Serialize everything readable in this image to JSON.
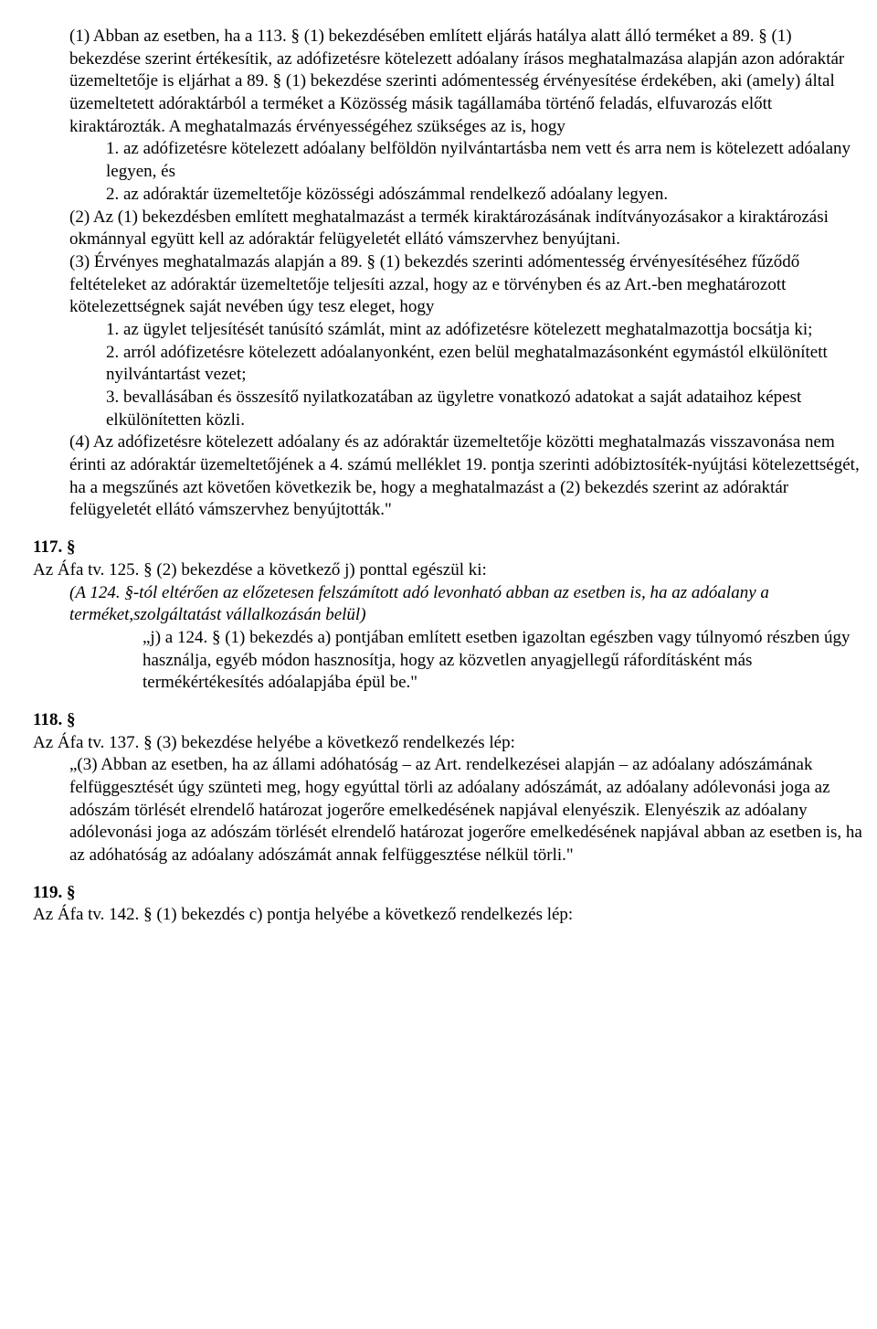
{
  "sec116": {
    "p1": "(1) Abban az esetben, ha a 113. § (1) bekezdésében említett eljárás hatálya alatt álló terméket a 89. § (1) bekezdése szerint értékesítik, az adófizetésre kötelezett adóalany írásos meghatalmazása alapján azon adóraktár üzemeltetője is eljárhat a 89. § (1) bekezdése szerinti adómentesség érvényesítése érdekében, aki (amely) által üzemeltetett adóraktárból a terméket a Közösség másik tagállamába történő feladás, elfuvarozás előtt kiraktározták. A meghatalmazás érvényességéhez szükséges az is, hogy",
    "p1_1": "1. az adófizetésre kötelezett adóalany belföldön nyilvántartásba nem vett és arra nem is kötelezett adóalany legyen, és",
    "p1_2": "2. az adóraktár üzemeltetője közösségi adószámmal rendelkező adóalany legyen.",
    "p2": "(2) Az (1) bekezdésben említett meghatalmazást a termék kiraktározásának indítványozásakor a kiraktározási okmánnyal együtt kell az adóraktár felügyeletét ellátó vámszervhez benyújtani.",
    "p3": "(3) Érvényes meghatalmazás alapján a 89. § (1) bekezdés szerinti adómentesség érvényesítéséhez fűződő feltételeket az adóraktár üzemeltetője teljesíti azzal, hogy az e törvényben és az Art.-ben meghatározott kötelezettségnek saját nevében úgy tesz eleget, hogy",
    "p3_1": "1. az ügylet teljesítését tanúsító számlát, mint az adófizetésre kötelezett meghatalmazottja bocsátja ki;",
    "p3_2": "2. arról adófizetésre kötelezett adóalanyonként, ezen belül meghatalmazásonként egymástól elkülönített nyilvántartást vezet;",
    "p3_3": "3. bevallásában és összesítő nyilatkozatában az ügyletre vonatkozó adatokat a saját adataihoz képest elkülönítetten közli.",
    "p4": "(4) Az adófizetésre kötelezett adóalany és az adóraktár üzemeltetője közötti meghatalmazás visszavonása nem érinti az adóraktár üzemeltetőjének a 4. számú melléklet 19. pontja szerinti adóbiztosíték-nyújtási kötelezettségét, ha a megszűnés azt követően következik be, hogy a meghatalmazást a (2) bekezdés szerint az adóraktár felügyeletét ellátó vámszervhez benyújtották.\""
  },
  "sec117": {
    "head": "117. §",
    "intro": "Az Áfa tv. 125. § (2) bekezdése a következő j) ponttal egészül ki:",
    "italic": "(A 124. §-tól eltérően az előzetesen felszámított adó levonható abban az esetben is, ha az adóalany a terméket,szolgáltatást vállalkozásán belül)",
    "quote": "„j) a 124. § (1) bekezdés a) pontjában említett esetben igazoltan egészben vagy túlnyomó részben úgy használja, egyéb módon hasznosítja, hogy az közvetlen anyagjellegű ráfordításként más termékértékesítés adóalapjába épül be.\""
  },
  "sec118": {
    "head": "118. §",
    "intro": "Az Áfa tv. 137. § (3) bekezdése helyébe a következő rendelkezés lép:",
    "quote": "„(3) Abban az esetben, ha az állami adóhatóság – az Art. rendelkezései alapján – az adóalany adószámának felfüggesztését úgy szünteti meg, hogy egyúttal törli az adóalany adószámát, az adóalany adólevonási joga az adószám törlését elrendelő határozat jogerőre emelkedésének napjával elenyészik. Elenyészik az adóalany adólevonási joga az adószám törlését elrendelő határozat jogerőre emelkedésének napjával abban az esetben is, ha az adóhatóság az adóalany adószámát annak felfüggesztése nélkül törli.\""
  },
  "sec119": {
    "head": "119. §",
    "intro": "Az Áfa tv. 142. § (1) bekezdés c) pontja helyébe a következő rendelkezés lép:"
  }
}
